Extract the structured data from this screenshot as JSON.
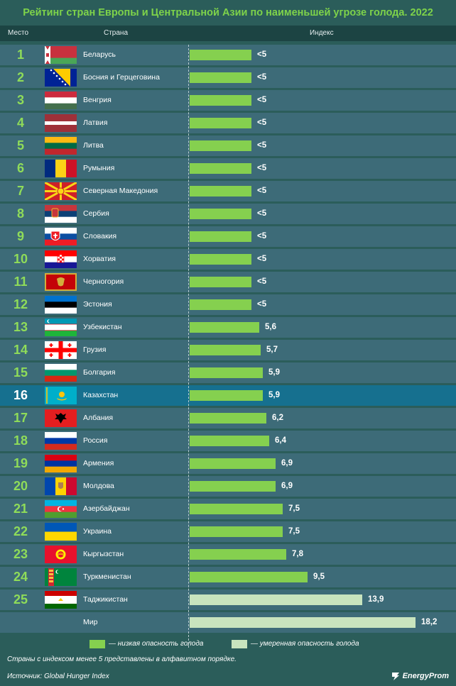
{
  "title": "Рейтинг стран Европы и Центральной Азии по наименьшей угрозе голода. 2022",
  "headers": {
    "rank": "Место",
    "country": "Страна",
    "index": "Индекс"
  },
  "colors": {
    "low": "#85d04f",
    "moderate": "#c8e4be",
    "highlight": "#16708f",
    "row": "#3d6b78"
  },
  "chart_data": {
    "type": "bar",
    "orientation": "horizontal",
    "xlim": [
      0,
      18.2
    ],
    "rows": [
      {
        "rank": "1",
        "country": "Беларусь",
        "label": "<5",
        "value": 5,
        "level": "low",
        "flag": "belarus-flag"
      },
      {
        "rank": "2",
        "country": "Босния и Герцеговина",
        "label": "<5",
        "value": 5,
        "level": "low",
        "flag": "bosnia-flag"
      },
      {
        "rank": "3",
        "country": "Венгрия",
        "label": "<5",
        "value": 5,
        "level": "low",
        "flag": "hungary-flag"
      },
      {
        "rank": "4",
        "country": "Латвия",
        "label": "<5",
        "value": 5,
        "level": "low",
        "flag": "latvia-flag"
      },
      {
        "rank": "5",
        "country": "Литва",
        "label": "<5",
        "value": 5,
        "level": "low",
        "flag": "lithuania-flag"
      },
      {
        "rank": "6",
        "country": "Румыния",
        "label": "<5",
        "value": 5,
        "level": "low",
        "flag": "romania-flag"
      },
      {
        "rank": "7",
        "country": "Северная Македония",
        "label": "<5",
        "value": 5,
        "level": "low",
        "flag": "north-macedonia-flag"
      },
      {
        "rank": "8",
        "country": "Сербия",
        "label": "<5",
        "value": 5,
        "level": "low",
        "flag": "serbia-flag"
      },
      {
        "rank": "9",
        "country": "Словакия",
        "label": "<5",
        "value": 5,
        "level": "low",
        "flag": "slovakia-flag"
      },
      {
        "rank": "10",
        "country": "Хорватия",
        "label": "<5",
        "value": 5,
        "level": "low",
        "flag": "croatia-flag"
      },
      {
        "rank": "11",
        "country": "Черногория",
        "label": "<5",
        "value": 5,
        "level": "low",
        "flag": "montenegro-flag"
      },
      {
        "rank": "12",
        "country": "Эстония",
        "label": "<5",
        "value": 5,
        "level": "low",
        "flag": "estonia-flag"
      },
      {
        "rank": "13",
        "country": "Узбекистан",
        "label": "5,6",
        "value": 5.6,
        "level": "low",
        "flag": "uzbekistan-flag"
      },
      {
        "rank": "14",
        "country": "Грузия",
        "label": "5,7",
        "value": 5.7,
        "level": "low",
        "flag": "georgia-flag"
      },
      {
        "rank": "15",
        "country": "Болгария",
        "label": "5,9",
        "value": 5.9,
        "level": "low",
        "flag": "bulgaria-flag"
      },
      {
        "rank": "16",
        "country": "Казахстан",
        "label": "5,9",
        "value": 5.9,
        "level": "low",
        "flag": "kazakhstan-flag",
        "highlight": true
      },
      {
        "rank": "17",
        "country": "Албания",
        "label": "6,2",
        "value": 6.2,
        "level": "low",
        "flag": "albania-flag"
      },
      {
        "rank": "18",
        "country": "Россия",
        "label": "6,4",
        "value": 6.4,
        "level": "low",
        "flag": "russia-flag"
      },
      {
        "rank": "19",
        "country": "Армения",
        "label": "6,9",
        "value": 6.9,
        "level": "low",
        "flag": "armenia-flag"
      },
      {
        "rank": "20",
        "country": "Молдова",
        "label": "6,9",
        "value": 6.9,
        "level": "low",
        "flag": "moldova-flag"
      },
      {
        "rank": "21",
        "country": "Азербайджан",
        "label": "7,5",
        "value": 7.5,
        "level": "low",
        "flag": "azerbaijan-flag"
      },
      {
        "rank": "22",
        "country": "Украина",
        "label": "7,5",
        "value": 7.5,
        "level": "low",
        "flag": "ukraine-flag"
      },
      {
        "rank": "23",
        "country": "Кыргызстан",
        "label": "7,8",
        "value": 7.8,
        "level": "low",
        "flag": "kyrgyzstan-flag"
      },
      {
        "rank": "24",
        "country": "Туркменистан",
        "label": "9,5",
        "value": 9.5,
        "level": "low",
        "flag": "turkmenistan-flag"
      },
      {
        "rank": "25",
        "country": "Таджикистан",
        "label": "13,9",
        "value": 13.9,
        "level": "moderate",
        "flag": "tajikistan-flag"
      },
      {
        "rank": "",
        "country": "Мир",
        "label": "18,2",
        "value": 18.2,
        "level": "moderate",
        "flag": ""
      }
    ]
  },
  "legend": [
    {
      "level": "low",
      "label": "— низкая опасность голода"
    },
    {
      "level": "moderate",
      "label": "— умеренная опасность голода"
    }
  ],
  "note": "Страны с индексом менее 5 представлены в алфавитном порядке.",
  "source": "Источник: Global Hunger Index",
  "logo": "EnergyProm"
}
